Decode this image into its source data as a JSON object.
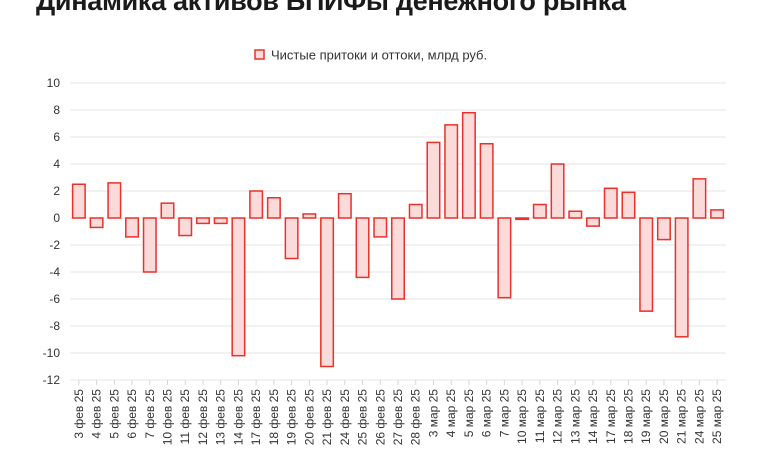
{
  "title": "Динамика активов БПИФы денежного рынка",
  "chart_data": {
    "type": "bar",
    "categories": [
      "3 фев 25",
      "4 фев 25",
      "5 фев 25",
      "6 фев 25",
      "7 фев 25",
      "10 фев 25",
      "11 фев 25",
      "12 фев 25",
      "13 фев 25",
      "14 фев 25",
      "17 фев 25",
      "18 фев 25",
      "19 фев 25",
      "20 фев 25",
      "21 фев 25",
      "24 фев 25",
      "25 фев 25",
      "26 фев 25",
      "27 фев 25",
      "28 фев 25",
      "3 мар 25",
      "4 мар 25",
      "5 мар 25",
      "6 мар 25",
      "7 мар 25",
      "10 мар 25",
      "11 мар 25",
      "12 мар 25",
      "13 мар 25",
      "14 мар 25",
      "17 мар 25",
      "18 мар 25",
      "19 мар 25",
      "20 мар 25",
      "21 мар 25",
      "24 мар 25",
      "25 мар 25"
    ],
    "series": [
      {
        "name": "Чистые притоки и оттоки, млрд руб.",
        "values": [
          2.5,
          -0.7,
          2.6,
          -1.4,
          -4.0,
          1.1,
          -1.3,
          -0.4,
          -0.4,
          -10.2,
          2.0,
          1.5,
          -3.0,
          0.3,
          -11.0,
          1.8,
          -4.4,
          -1.4,
          -6.0,
          1.0,
          5.6,
          6.9,
          7.8,
          5.5,
          -5.9,
          -0.1,
          1.0,
          4.0,
          0.5,
          -0.6,
          2.2,
          1.9,
          -6.9,
          -1.6,
          -8.8,
          2.9,
          0.6
        ]
      }
    ],
    "yticks": [
      "10",
      "8",
      "6",
      "4",
      "2",
      "0",
      "-2",
      "-4",
      "-6",
      "-8",
      "-10",
      "-12"
    ],
    "ylim": [
      -12,
      10
    ],
    "grid": true,
    "legend_position": "top",
    "colors": {
      "bar_fill": "#fbdada",
      "bar_stroke": "#e8322a",
      "grid": "#e6e6e6"
    }
  }
}
